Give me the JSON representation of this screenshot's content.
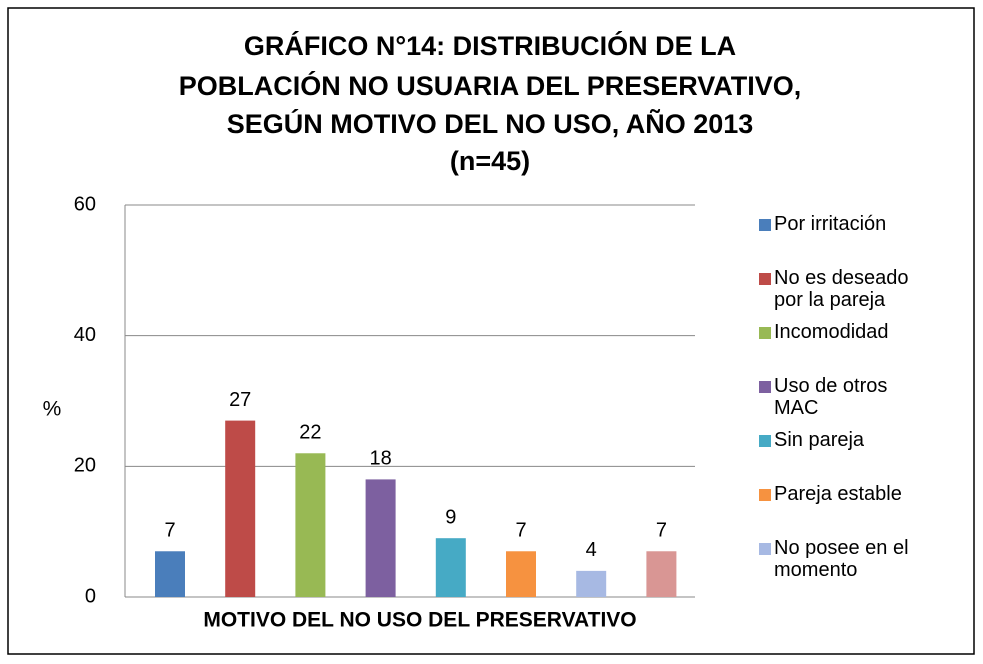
{
  "chart_data": {
    "type": "bar",
    "title": [
      "GRÁFICO N°14: DISTRIBUCIÓN DE LA",
      "POBLACIÓN NO USUARIA DEL PRESERVATIVO,",
      "SEGÚN MOTIVO DEL NO USO, AÑO 2013",
      "(n=45)"
    ],
    "x_label": "MOTIVO DEL NO USO DEL PRESERVATIVO",
    "y_label": "%",
    "categories": [
      "Por irritación",
      "No es deseado por la pareja",
      "Incomodidad",
      "Uso de otros MAC",
      "Sin pareja",
      "Pareja estable",
      "No posee en el momento",
      null
    ],
    "values": [
      7,
      27,
      22,
      18,
      9,
      7,
      4,
      7
    ],
    "colors": [
      "#4a7ebb",
      "#be4b48",
      "#98b954",
      "#7d60a0",
      "#46aac5",
      "#f69240",
      "#a7b9e3",
      "#d99694"
    ],
    "ylim": [
      0,
      60
    ],
    "yticks": [
      0,
      20,
      40,
      60
    ],
    "grid": true,
    "legend": "right"
  }
}
